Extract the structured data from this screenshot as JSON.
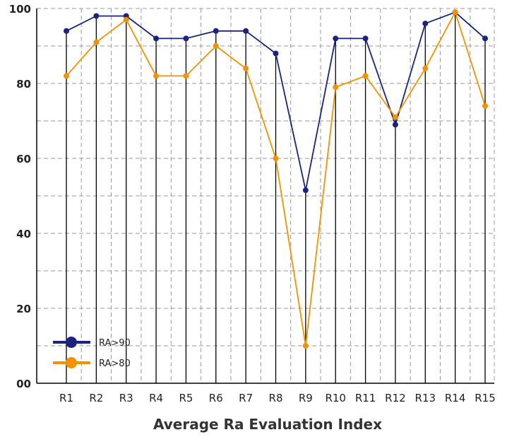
{
  "chart_data": {
    "type": "line",
    "categories": [
      "R1",
      "R2",
      "R3",
      "R4",
      "R5",
      "R6",
      "R7",
      "R8",
      "R9",
      "R10",
      "R11",
      "R12",
      "R13",
      "R14",
      "R15"
    ],
    "series": [
      {
        "name": "RA>90",
        "color": "#1a237e",
        "values": [
          94,
          98,
          98,
          92,
          92,
          94,
          94,
          88,
          51.5,
          92,
          92,
          69,
          96,
          99,
          92
        ]
      },
      {
        "name": "RA>80",
        "color": "#f39200",
        "values": [
          82,
          91,
          97,
          82,
          82,
          90,
          84,
          60,
          10,
          79,
          82,
          71,
          84,
          99,
          74
        ]
      }
    ],
    "title": "",
    "xlabel": "Average Ra Evaluation Index",
    "ylabel": "",
    "ylim": [
      0,
      100
    ],
    "yticks": [
      "00",
      "20",
      "40",
      "60",
      "80",
      "100"
    ],
    "grid": true,
    "legend_position": "bottom-left"
  },
  "colors": {
    "grid": "#999999",
    "axis": "#000000",
    "drop_lines": "#000000"
  }
}
